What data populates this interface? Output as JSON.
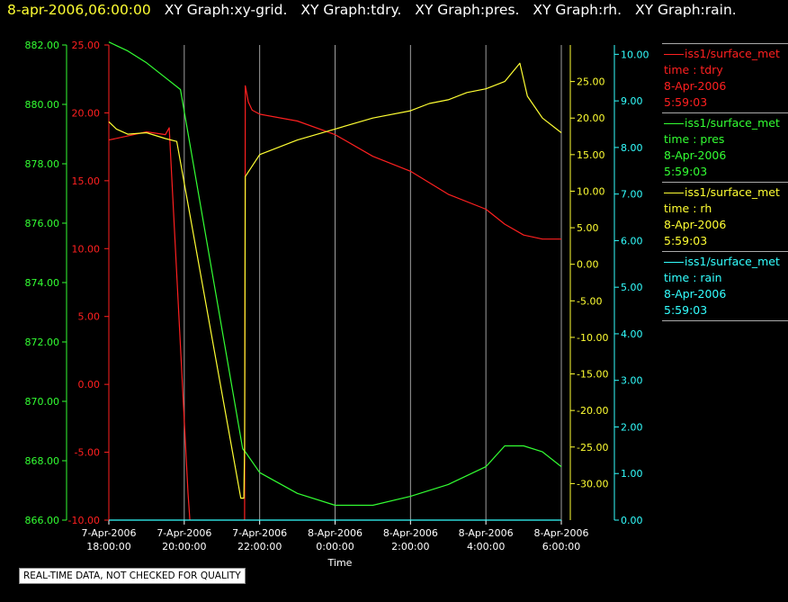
{
  "header": {
    "timestamp": "8-apr-2006,06:00:00",
    "titles": [
      "XY Graph:xy-grid.",
      "XY Graph:tdry.",
      "XY Graph:pres.",
      "XY Graph:rh.",
      "XY Graph:rain."
    ]
  },
  "quality_note": "REAL-TIME DATA, NOT CHECKED FOR QUALITY",
  "legend": [
    {
      "name": "iss1/surface_met",
      "line1": "time : tdry",
      "line2": "8-Apr-2006",
      "line3": "5:59:03",
      "color": "#ff2020"
    },
    {
      "name": "iss1/surface_met",
      "line1": "time : pres",
      "line2": "8-Apr-2006",
      "line3": "5:59:03",
      "color": "#33ff33"
    },
    {
      "name": "iss1/surface_met",
      "line1": "time : rh",
      "line2": "8-Apr-2006",
      "line3": "5:59:03",
      "color": "#ffff33"
    },
    {
      "name": "iss1/surface_met",
      "line1": "time : rain",
      "line2": "8-Apr-2006",
      "line3": "5:59:03",
      "color": "#33ffff"
    }
  ],
  "chart_data": {
    "type": "line",
    "xlabel": "Time",
    "x_ticks": [
      {
        "line1": "7-Apr-2006",
        "line2": "18:00:00"
      },
      {
        "line1": "7-Apr-2006",
        "line2": "20:00:00"
      },
      {
        "line1": "7-Apr-2006",
        "line2": "22:00:00"
      },
      {
        "line1": "8-Apr-2006",
        "line2": "0:00:00"
      },
      {
        "line1": "8-Apr-2006",
        "line2": "2:00:00"
      },
      {
        "line1": "8-Apr-2006",
        "line2": "4:00:00"
      },
      {
        "line1": "8-Apr-2006",
        "line2": "6:00:00"
      }
    ],
    "xlim_hours": [
      18,
      30
    ],
    "grid": "vertical",
    "axes": [
      {
        "id": "tdry",
        "color": "#ff2020",
        "ylim": [
          -10,
          25
        ],
        "ticks": [
          "25.00",
          "20.00",
          "15.00",
          "10.00",
          "5.00",
          "0.00",
          "-5.00",
          "-10.00"
        ]
      },
      {
        "id": "pres",
        "color": "#33ff33",
        "ylim": [
          866,
          882
        ],
        "ticks": [
          "882.00",
          "880.00",
          "878.00",
          "876.00",
          "874.00",
          "872.00",
          "870.00",
          "868.00",
          "866.00"
        ]
      },
      {
        "id": "rh",
        "color": "#ffff33",
        "ylim": [
          -35,
          30
        ],
        "ticks": [
          "25.00",
          "20.00",
          "15.00",
          "10.00",
          "5.00",
          "0.00",
          "-5.00",
          "-10.00",
          "-15.00",
          "-20.00",
          "-25.00",
          "-30.00"
        ]
      },
      {
        "id": "rain",
        "color": "#33ffff",
        "ylim": [
          0,
          10.2
        ],
        "ticks": [
          "10.00",
          "9.00",
          "8.00",
          "7.00",
          "6.00",
          "5.00",
          "4.00",
          "3.00",
          "2.00",
          "1.00",
          "0.00"
        ]
      }
    ],
    "series": [
      {
        "axis": "tdry",
        "color": "#ff2020",
        "x": [
          18,
          18.5,
          19,
          19.5,
          19.6,
          20.1,
          20.15
        ],
        "y": [
          18.0,
          18.3,
          18.6,
          18.4,
          18.9,
          -8.0,
          -10
        ]
      },
      {
        "axis": "tdry",
        "color": "#ff2020",
        "x": [
          21.6,
          21.62,
          21.7,
          21.8,
          22,
          23,
          24,
          25,
          26,
          27,
          28,
          28.5,
          29,
          29.5,
          30
        ],
        "y": [
          -10,
          22.0,
          20.8,
          20.2,
          19.9,
          19.4,
          18.4,
          16.8,
          15.7,
          14.0,
          12.9,
          11.8,
          11.0,
          10.7,
          10.7
        ]
      },
      {
        "axis": "pres",
        "color": "#33ff33",
        "x": [
          18,
          18.5,
          19,
          19.5,
          19.9,
          21.55,
          21.62,
          22,
          23,
          24,
          25,
          26,
          27,
          28,
          28.5,
          29,
          29.5,
          30
        ],
        "y": [
          882.1,
          881.8,
          881.4,
          880.9,
          880.5,
          868.4,
          868.3,
          867.6,
          866.9,
          866.5,
          866.5,
          866.8,
          867.2,
          867.8,
          868.5,
          868.5,
          868.3,
          867.8
        ]
      },
      {
        "axis": "rh",
        "color": "#ffff33",
        "x": [
          18,
          18.2,
          18.5,
          19,
          19.5,
          19.8,
          21.5,
          21.58,
          21.6,
          21.62,
          22,
          23,
          24,
          25,
          26,
          26.5,
          27,
          27.5,
          28,
          28.5,
          28.9,
          29.1,
          29.5,
          30
        ],
        "y": [
          19.5,
          18.5,
          17.8,
          18.0,
          17.2,
          16.8,
          -32.0,
          -32.0,
          -25.0,
          12.0,
          15.0,
          17.0,
          18.5,
          20.0,
          21.0,
          22.0,
          22.5,
          23.5,
          24.0,
          25.0,
          27.5,
          23.0,
          20.0,
          18.0
        ]
      },
      {
        "axis": "rain",
        "color": "#33ffff",
        "x": [
          18,
          30
        ],
        "y": [
          0,
          0
        ]
      }
    ]
  }
}
